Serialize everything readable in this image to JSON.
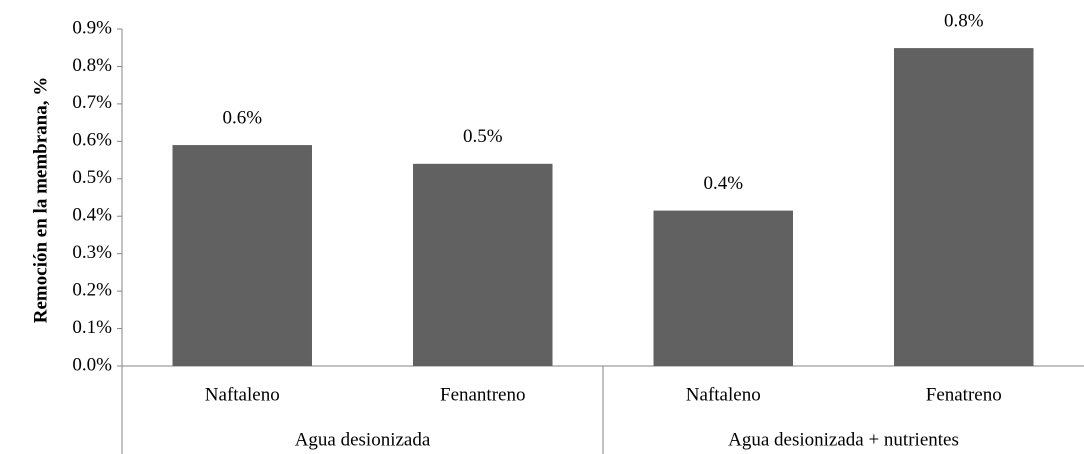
{
  "chart_data": {
    "type": "bar",
    "y_axis_label": "Remoción en la membrana, %",
    "categories": [
      "Naftaleno",
      "Fenantreno",
      "Naftaleno",
      "Fenatreno"
    ],
    "groups": [
      "Agua desionizada",
      "Agua desionizada + nutrientes"
    ],
    "values": [
      0.59,
      0.54,
      0.415,
      0.849
    ],
    "value_labels": [
      "0.6%",
      "0.5%",
      "0.4%",
      "0.8%"
    ],
    "color": "#616161",
    "ylim": [
      0,
      0.9
    ],
    "yticks": [
      {
        "value": 0,
        "label": "0.0%"
      },
      {
        "value": 0.1,
        "label": "0.1%"
      },
      {
        "value": 0.2,
        "label": "0.2%"
      },
      {
        "value": 0.3,
        "label": "0.3%"
      },
      {
        "value": 0.4,
        "label": "0.4%"
      },
      {
        "value": 0.5,
        "label": "0.5%"
      },
      {
        "value": 0.6,
        "label": "0.6%"
      },
      {
        "value": 0.7,
        "label": "0.7%"
      },
      {
        "value": 0.8,
        "label": "0.8%"
      },
      {
        "value": 0.9,
        "label": "0.9%"
      }
    ]
  }
}
